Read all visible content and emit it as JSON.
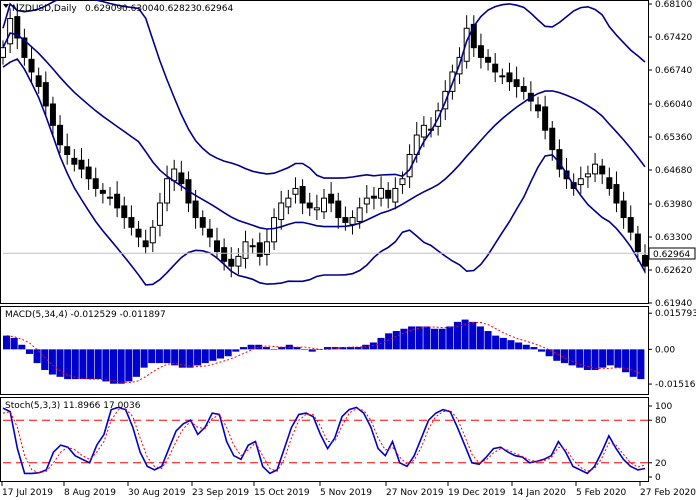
{
  "app": {
    "symbol_header": "NZDUSD,Daily",
    "ohlc": [
      "0.62909",
      "0.63004",
      "0.62823",
      "0.62964"
    ],
    "current_price": "0.62964"
  },
  "panels": {
    "main": {
      "ticks": [
        "0.68100",
        "0.67420",
        "0.66740",
        "0.66040",
        "0.65360",
        "0.64680",
        "0.63980",
        "0.63300",
        "0.62620",
        "0.61940"
      ]
    },
    "macd": {
      "label": "MACD(5,34,4) -0.012529 -0.011897",
      "ticks": [
        "0.015793",
        "0.00",
        "-0.01516"
      ]
    },
    "stoch": {
      "label": "Stoch(5,3,3) 11.8966 17.0036",
      "ticks": [
        "100",
        "80",
        "20",
        "0"
      ]
    }
  },
  "x_axis": {
    "labels": [
      "17 Jul 2019",
      "8 Aug 2019",
      "30 Aug 2019",
      "23 Sep 2019",
      "15 Oct 2019",
      "5 Nov 2019",
      "27 Nov 2019",
      "19 Dec 2019",
      "14 Jan 2020",
      "5 Feb 2020",
      "27 Feb 2020"
    ]
  },
  "colors": {
    "candles": "#000000",
    "bands": "#00008b",
    "macd_hist": "#0000cc",
    "macd_signal": "#ff0000",
    "stoch_main": "#0000cc",
    "stoch_signal": "#ff0000",
    "levels": "#ff0000",
    "price_line": "#c0c0c0"
  },
  "chart_data": [
    {
      "type": "candlestick",
      "title": "NZDUSD,Daily",
      "ylim": [
        0.6194,
        0.681
      ],
      "close_series": [
        0.672,
        0.678,
        0.674,
        0.67,
        0.667,
        0.664,
        0.66,
        0.656,
        0.652,
        0.65,
        0.648,
        0.647,
        0.645,
        0.643,
        0.642,
        0.641,
        0.639,
        0.637,
        0.635,
        0.633,
        0.631,
        0.635,
        0.64,
        0.645,
        0.647,
        0.644,
        0.64,
        0.637,
        0.635,
        0.633,
        0.63,
        0.628,
        0.627,
        0.629,
        0.632,
        0.631,
        0.629,
        0.632,
        0.637,
        0.64,
        0.641,
        0.643,
        0.64,
        0.639,
        0.639,
        0.641,
        0.64,
        0.637,
        0.636,
        0.637,
        0.639,
        0.641,
        0.641,
        0.643,
        0.641,
        0.643,
        0.645,
        0.65,
        0.654,
        0.656,
        0.655,
        0.659,
        0.663,
        0.667,
        0.67,
        0.676,
        0.672,
        0.67,
        0.669,
        0.667,
        0.666,
        0.665,
        0.664,
        0.663,
        0.661,
        0.659,
        0.655,
        0.651,
        0.647,
        0.645,
        0.643,
        0.645,
        0.646,
        0.648,
        0.646,
        0.643,
        0.64,
        0.637,
        0.634,
        0.63,
        0.627
      ],
      "bands_note": "Bollinger-style envelope around price"
    },
    {
      "type": "bar",
      "title": "MACD(5,34,4) -0.012529 -0.011897",
      "ylim": [
        -0.0195,
        0.0185
      ],
      "values": [
        0.006,
        0.005,
        0.002,
        -0.002,
        -0.006,
        -0.009,
        -0.011,
        -0.012,
        -0.013,
        -0.013,
        -0.013,
        -0.013,
        -0.013,
        -0.014,
        -0.015,
        -0.015,
        -0.014,
        -0.012,
        -0.008,
        -0.006,
        -0.006,
        -0.006,
        -0.007,
        -0.008,
        -0.008,
        -0.007,
        -0.006,
        -0.005,
        -0.004,
        -0.003,
        -0.001,
        0.001,
        0.002,
        0.002,
        0.001,
        0.0,
        0.001,
        0.002,
        0.001,
        0.0,
        -0.001,
        0.0,
        0.001,
        0.001,
        0.001,
        0.001,
        0.001,
        0.002,
        0.003,
        0.005,
        0.007,
        0.008,
        0.009,
        0.01,
        0.01,
        0.01,
        0.009,
        0.009,
        0.01,
        0.012,
        0.013,
        0.012,
        0.01,
        0.008,
        0.006,
        0.005,
        0.004,
        0.003,
        0.002,
        0.001,
        -0.001,
        -0.003,
        -0.005,
        -0.006,
        -0.007,
        -0.008,
        -0.009,
        -0.009,
        -0.008,
        -0.007,
        -0.008,
        -0.01,
        -0.012,
        -0.013
      ]
    },
    {
      "type": "line",
      "title": "Stoch(5,3,3) 11.8966 17.0036",
      "ylim": [
        0,
        100
      ],
      "levels": [
        80,
        20
      ],
      "series": [
        {
          "name": "main",
          "values": [
            97,
            92,
            40,
            5,
            5,
            6,
            10,
            35,
            45,
            42,
            30,
            25,
            20,
            45,
            60,
            95,
            98,
            95,
            70,
            35,
            15,
            10,
            15,
            40,
            65,
            75,
            80,
            60,
            70,
            90,
            88,
            50,
            30,
            25,
            45,
            50,
            15,
            5,
            10,
            40,
            70,
            88,
            90,
            85,
            60,
            40,
            55,
            85,
            95,
            98,
            90,
            70,
            40,
            30,
            50,
            20,
            15,
            30,
            55,
            80,
            90,
            95,
            92,
            70,
            45,
            20,
            18,
            28,
            40,
            42,
            35,
            30,
            28,
            20,
            22,
            25,
            30,
            50,
            35,
            15,
            10,
            5,
            15,
            35,
            58,
            40,
            25,
            15,
            10,
            12
          ],
          "color": "#0000cc"
        },
        {
          "name": "signal",
          "values": [
            90,
            92,
            70,
            30,
            10,
            6,
            8,
            20,
            35,
            42,
            38,
            30,
            25,
            35,
            50,
            80,
            95,
            96,
            85,
            55,
            28,
            15,
            12,
            28,
            50,
            68,
            78,
            70,
            68,
            82,
            88,
            70,
            45,
            30,
            38,
            48,
            30,
            12,
            8,
            25,
            55,
            80,
            88,
            88,
            72,
            50,
            50,
            72,
            90,
            96,
            94,
            80,
            55,
            38,
            42,
            28,
            18,
            24,
            42,
            68,
            85,
            92,
            94,
            82,
            58,
            32,
            20,
            24,
            34,
            40,
            38,
            33,
            29,
            24,
            22,
            23,
            27,
            42,
            40,
            25,
            14,
            8,
            12,
            26,
            48,
            45,
            32,
            20,
            14,
            17
          ],
          "color": "#ff0000"
        }
      ]
    }
  ]
}
